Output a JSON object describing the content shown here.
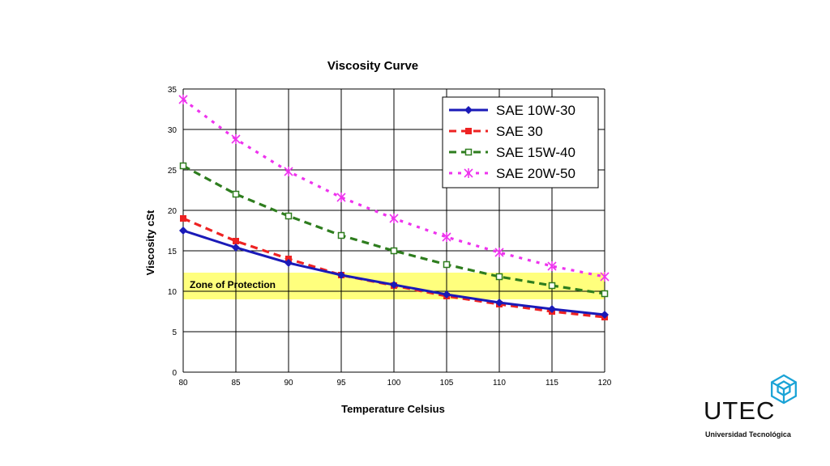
{
  "chart_data": {
    "type": "line",
    "title": "Viscosity Curve",
    "xlabel": "Temperature Celsius",
    "ylabel": "Viscosity cSt",
    "x": [
      80,
      85,
      90,
      95,
      100,
      105,
      110,
      115,
      120
    ],
    "xlim": [
      80,
      120
    ],
    "ylim": [
      0,
      35
    ],
    "xticks": [
      80,
      85,
      90,
      95,
      100,
      105,
      110,
      115,
      120
    ],
    "yticks": [
      0,
      5,
      10,
      15,
      20,
      25,
      30,
      35
    ],
    "grid": true,
    "legend_position": "top-right",
    "series": [
      {
        "name": "SAE 10W-30",
        "values": [
          17.5,
          15.4,
          13.5,
          12.0,
          10.8,
          9.6,
          8.6,
          7.8,
          7.1
        ],
        "color": "#1a1ab8",
        "style": "solid",
        "marker": "diamond"
      },
      {
        "name": "SAE 30",
        "values": [
          19.0,
          16.2,
          14.0,
          12.0,
          10.7,
          9.4,
          8.4,
          7.5,
          6.8
        ],
        "color": "#ee2222",
        "style": "dashed",
        "marker": "square"
      },
      {
        "name": "SAE 15W-40",
        "values": [
          25.5,
          22.0,
          19.3,
          16.9,
          15.0,
          13.3,
          11.8,
          10.7,
          9.7
        ],
        "color": "#2e7d1e",
        "style": "dashed",
        "marker": "square-open"
      },
      {
        "name": "SAE 20W-50",
        "values": [
          33.7,
          28.8,
          24.8,
          21.6,
          19.0,
          16.7,
          14.8,
          13.1,
          11.8
        ],
        "color": "#ee33ee",
        "style": "dotted",
        "marker": "star"
      }
    ],
    "band": {
      "label": "Zone of Protection",
      "y_from": 9.0,
      "y_to": 12.3,
      "color": "#ffff66"
    }
  },
  "logo": {
    "word": "UTEC",
    "subtitle": "Universidad Tecnológica",
    "icon_name": "hexagon-cube-icon",
    "icon_color": "#1aa3d6"
  }
}
